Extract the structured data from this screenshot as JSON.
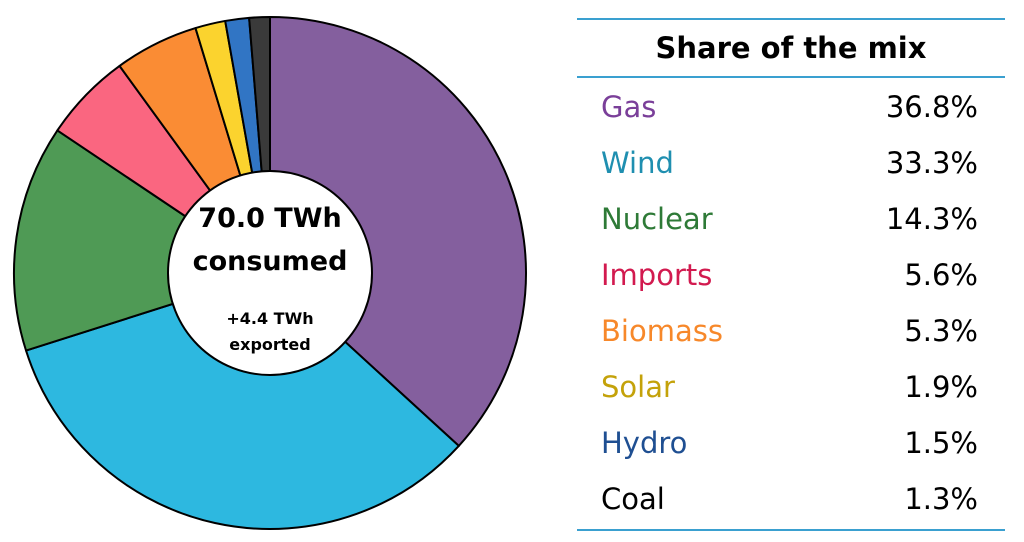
{
  "chart_data": {
    "type": "pie",
    "title": "Share of the mix",
    "center": {
      "line1": "70.0 TWh",
      "line2": "consumed",
      "line3": "+4.4 TWh",
      "line4": "exported"
    },
    "slices": [
      {
        "label": "Gas",
        "value": 36.8,
        "display": "36.8%",
        "color": "#845f9e",
        "text_color": "#7a3f99"
      },
      {
        "label": "Wind",
        "value": 33.3,
        "display": "33.3%",
        "color": "#2db8e0",
        "text_color": "#1f8fb0"
      },
      {
        "label": "Nuclear",
        "value": 14.3,
        "display": "14.3%",
        "color": "#4f9a55",
        "text_color": "#2e7a37"
      },
      {
        "label": "Imports",
        "value": 5.6,
        "display": "5.6%",
        "color": "#fa6680",
        "text_color": "#d21a4f"
      },
      {
        "label": "Biomass",
        "value": 5.3,
        "display": "5.3%",
        "color": "#fa8c34",
        "text_color": "#f7882a"
      },
      {
        "label": "Solar",
        "value": 1.9,
        "display": "1.9%",
        "color": "#fbd32e",
        "text_color": "#c4a20a"
      },
      {
        "label": "Hydro",
        "value": 1.5,
        "display": "1.5%",
        "color": "#3175c4",
        "text_color": "#1f4f92"
      },
      {
        "label": "Coal",
        "value": 1.3,
        "display": "1.3%",
        "color": "#3a3a3a",
        "text_color": "#000000"
      }
    ]
  }
}
